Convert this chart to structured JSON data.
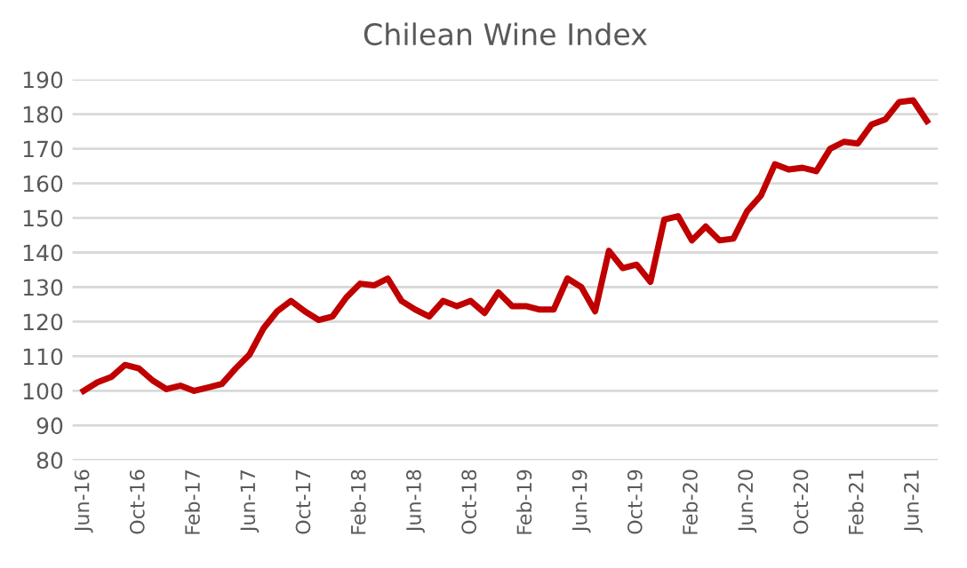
{
  "chart_data": {
    "type": "line",
    "title": "Chilean Wine Index",
    "categories": [
      "Jun-16",
      null,
      null,
      null,
      "Oct-16",
      null,
      null,
      null,
      "Feb-17",
      null,
      null,
      null,
      "Jun-17",
      null,
      null,
      null,
      "Oct-17",
      null,
      null,
      null,
      "Feb-18",
      null,
      null,
      null,
      "Jun-18",
      null,
      null,
      null,
      "Oct-18",
      null,
      null,
      null,
      "Feb-19",
      null,
      null,
      null,
      "Jun-19",
      null,
      null,
      null,
      "Oct-19",
      null,
      null,
      null,
      "Feb-20",
      null,
      null,
      null,
      "Jun-20",
      null,
      null,
      null,
      "Oct-20",
      null,
      null,
      null,
      "Feb-21",
      null,
      null,
      null,
      "Jun-21",
      null
    ],
    "series": [
      {
        "color": "#c00000",
        "values": [
          100,
          102.5,
          104,
          107.5,
          106.5,
          103,
          100.5,
          101.5,
          100,
          101,
          102,
          106.5,
          110.5,
          118,
          123,
          126,
          123,
          120.5,
          121.5,
          127,
          131,
          130.5,
          132.5,
          126,
          123.5,
          121.5,
          126,
          124.5,
          126,
          122.5,
          128.5,
          124.5,
          124.5,
          123.5,
          123.5,
          132.5,
          130,
          123,
          140.5,
          135.5,
          136.5,
          131.5,
          149.5,
          150.5,
          143.5,
          147.5,
          143.5,
          144,
          152,
          156.5,
          165.5,
          164,
          164.5,
          163.5,
          170,
          172,
          171.5,
          177,
          178.5,
          183.5,
          184,
          178
        ]
      }
    ],
    "ylim": [
      80,
      190
    ],
    "yticks": [
      80,
      90,
      100,
      110,
      120,
      130,
      140,
      150,
      160,
      170,
      180,
      190
    ],
    "grid": "y",
    "legend": false,
    "marker": "none",
    "line_style": "solid"
  }
}
